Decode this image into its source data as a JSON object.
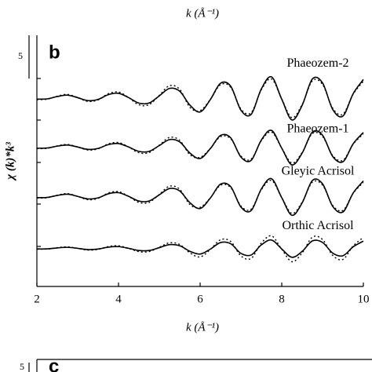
{
  "chart_data": {
    "type": "line",
    "panel_label": "b",
    "top_cropped_label": "k (Å⁻¹)",
    "x_label": "k (Å⁻¹)",
    "y_label": "χ (k)*k³",
    "scale_bar": {
      "value": 5,
      "label": "5"
    },
    "next_panel": {
      "label": "c",
      "scale_label": "5"
    },
    "x": [
      2,
      2.25,
      2.5,
      2.75,
      3,
      3.25,
      3.5,
      3.75,
      4,
      4.25,
      4.5,
      4.75,
      5,
      5.25,
      5.5,
      5.75,
      6,
      6.25,
      6.5,
      6.75,
      7,
      7.25,
      7.5,
      7.75,
      8,
      8.25,
      8.5,
      8.75,
      9,
      9.25,
      9.5,
      9.75,
      10
    ],
    "xlim": [
      2,
      10
    ],
    "xticks": [
      2,
      4,
      6,
      8,
      10
    ],
    "ylim": [
      0,
      29
    ],
    "series": [
      {
        "name": "Phaeozem-2",
        "color": "#000000",
        "values": [
          21.63,
          21.66,
          21.93,
          22.09,
          21.8,
          21.46,
          21.6,
          22.15,
          22.3,
          21.8,
          21.17,
          21.18,
          22.01,
          22.87,
          22.54,
          20.94,
          20.15,
          21.58,
          23.47,
          23.12,
          20.35,
          19.87,
          22.81,
          24.2,
          21.62,
          19.23,
          20.92,
          23.95,
          23.5,
          20.43,
          19.68,
          22.26,
          23.9
        ],
        "dotted_values": [
          21.58,
          21.62,
          21.97,
          22.18,
          21.8,
          21.36,
          21.54,
          22.26,
          22.45,
          21.8,
          20.98,
          20.99,
          22.07,
          23.19,
          22.76,
          20.68,
          20.31,
          21.6,
          23.3,
          22.99,
          20.49,
          20.06,
          22.71,
          23.96,
          21.64,
          19.49,
          21.01,
          23.74,
          23.33,
          20.57,
          19.89,
          22.21,
          23.69
        ]
      },
      {
        "name": "Phaeozem-1",
        "color": "#000000",
        "values": [
          15.96,
          15.99,
          16.2,
          16.33,
          16.1,
          15.83,
          15.94,
          16.38,
          16.5,
          16.1,
          15.6,
          15.6,
          16.27,
          16.96,
          16.69,
          15.41,
          14.78,
          15.92,
          17.44,
          17.16,
          14.94,
          14.56,
          16.91,
          18.02,
          15.96,
          14.04,
          15.4,
          17.82,
          17.46,
          15.0,
          14.4,
          16.47,
          17.78
        ],
        "dotted_values": [
          15.92,
          15.95,
          16.24,
          16.4,
          16.1,
          15.75,
          15.89,
          16.46,
          16.62,
          16.1,
          15.44,
          15.46,
          16.32,
          17.21,
          16.87,
          15.21,
          14.91,
          15.94,
          17.3,
          17.05,
          15.06,
          14.71,
          16.83,
          17.83,
          15.97,
          14.25,
          15.47,
          17.65,
          17.32,
          15.11,
          14.57,
          16.43,
          17.61
        ]
      },
      {
        "name": "Gleyic Acrisol",
        "color": "#000000",
        "values": [
          10.26,
          10.28,
          10.51,
          10.65,
          10.4,
          10.11,
          10.23,
          10.7,
          10.83,
          10.4,
          9.86,
          9.87,
          10.58,
          11.31,
          11.03,
          9.67,
          9.0,
          10.21,
          11.82,
          11.52,
          9.17,
          8.76,
          11.26,
          12.44,
          10.25,
          8.22,
          9.65,
          12.23,
          11.85,
          9.24,
          8.6,
          10.79,
          12.19
        ],
        "dotted_values": [
          10.21,
          10.25,
          10.54,
          10.72,
          10.4,
          10.02,
          10.18,
          10.79,
          10.95,
          10.4,
          9.7,
          9.71,
          10.63,
          11.58,
          11.22,
          9.45,
          9.14,
          10.23,
          11.68,
          11.41,
          9.29,
          8.92,
          11.17,
          12.24,
          10.26,
          8.43,
          9.73,
          12.04,
          11.7,
          9.35,
          8.78,
          10.75,
          12.01
        ]
      },
      {
        "name": "Orthic Acrisol",
        "color": "#000000",
        "values": [
          4.33,
          4.34,
          4.45,
          4.52,
          4.4,
          4.26,
          4.32,
          4.54,
          4.6,
          4.4,
          4.15,
          4.15,
          4.48,
          4.83,
          4.7,
          4.06,
          3.74,
          4.31,
          5.07,
          4.93,
          3.82,
          3.63,
          4.8,
          5.36,
          4.33,
          3.37,
          4.05,
          5.26,
          5.08,
          3.85,
          3.55,
          4.58,
          5.24
        ],
        "dotted_values": [
          4.3,
          4.32,
          4.48,
          4.57,
          4.4,
          4.2,
          4.28,
          4.61,
          4.7,
          4.4,
          4.02,
          4.03,
          4.53,
          5.04,
          4.84,
          3.88,
          3.41,
          4.27,
          5.4,
          5.19,
          3.53,
          3.24,
          5.01,
          5.84,
          4.29,
          2.86,
          3.87,
          5.69,
          5.42,
          3.58,
          3.13,
          4.68,
          5.66
        ]
      }
    ]
  }
}
